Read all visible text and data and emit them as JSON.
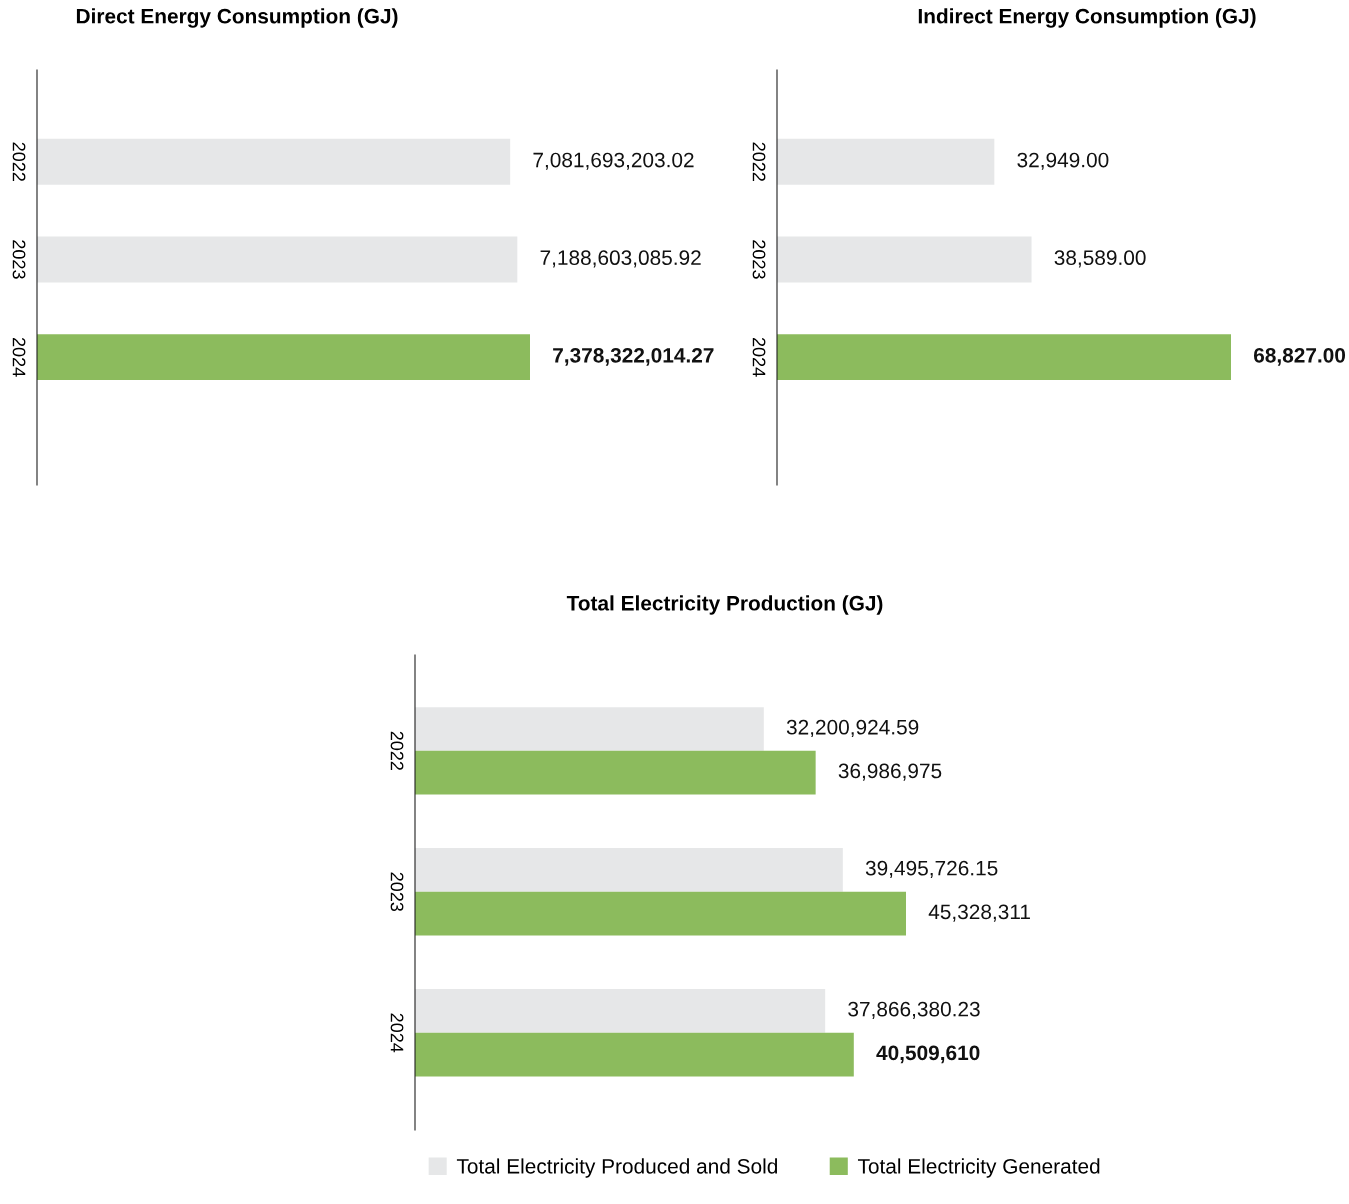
{
  "chart_data": [
    {
      "type": "bar",
      "orientation": "horizontal",
      "title": "Direct Energy Consumption (GJ)",
      "categories": [
        "2022",
        "2023",
        "2024"
      ],
      "values": [
        7081693203.02,
        7188603085.92,
        7378322014.27
      ],
      "colors": [
        "#e6e7e8",
        "#e6e7e8",
        "#8cbb5d"
      ],
      "value_labels": [
        "7,081,693,203.02",
        "7,188,603,085.92",
        "7,378,322,014.27"
      ],
      "grid": false,
      "legend": false,
      "tick_labels": "y"
    },
    {
      "type": "bar",
      "orientation": "horizontal",
      "title": "Indirect Energy Consumption (GJ)",
      "categories": [
        "2022",
        "2023",
        "2024"
      ],
      "values": [
        32949.0,
        38589.0,
        68827.0
      ],
      "colors": [
        "#e6e7e8",
        "#e6e7e8",
        "#8cbb5d"
      ],
      "value_labels": [
        "32,949.00",
        "38,589.00",
        "68,827.00"
      ],
      "grid": false,
      "legend": false,
      "tick_labels": "y"
    },
    {
      "type": "bar",
      "orientation": "horizontal",
      "title": "Total Electricity Production (GJ)",
      "categories": [
        "2022",
        "2023",
        "2024"
      ],
      "series": [
        {
          "name": "Total Electricity Produced and Sold",
          "color": "#e6e7e8",
          "values": [
            32200924.59,
            39495726.15,
            37866380.23
          ],
          "value_labels": [
            "32,200,924.59",
            "39,495,726.15",
            "37,866,380.23"
          ]
        },
        {
          "name": "Total Electricity Generated",
          "color": "#8cbb5d",
          "values": [
            36986975,
            45328311,
            40509610
          ],
          "value_labels": [
            "36,986,975",
            "45,328,311",
            "40,509,610"
          ]
        }
      ],
      "grid": false,
      "legend": "bottom",
      "tick_labels": "y"
    }
  ]
}
